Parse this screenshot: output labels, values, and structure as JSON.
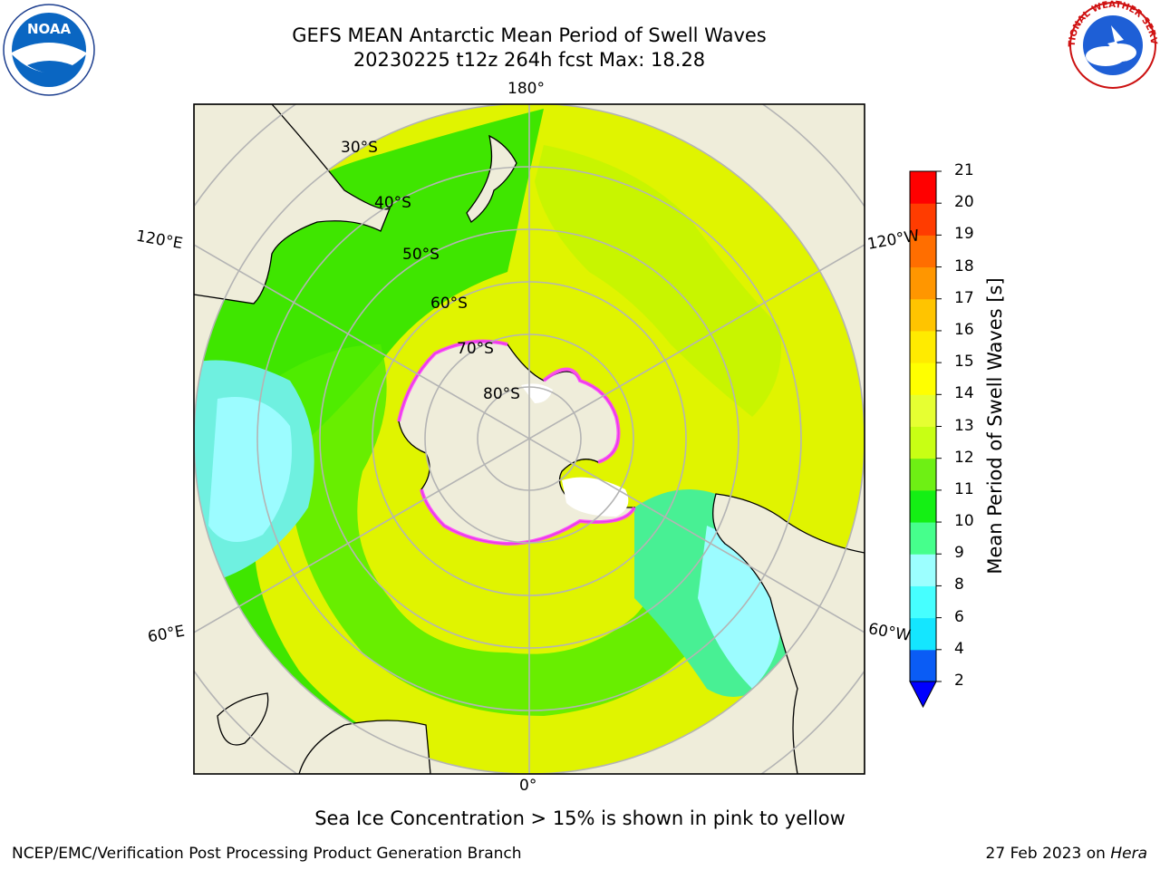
{
  "header": {
    "title_line1": "GEFS MEAN Antarctic Mean Period of Swell Waves",
    "title_line2": "20230225 t12z 264h fcst   Max: 18.28"
  },
  "logos": {
    "noaa_text": "NOAA",
    "nws_text": "NATIONAL WEATHER SERVICE"
  },
  "map": {
    "lon_labels": {
      "top": "180°",
      "bottom": "0°",
      "left_upper": "120°E",
      "right_upper": "120°W",
      "left_lower": "60°E",
      "right_lower": "60°W"
    },
    "lat_labels": [
      "30°S",
      "40°S",
      "50°S",
      "60°S",
      "70°S",
      "80°S"
    ],
    "colors": {
      "land": "#efedda",
      "ocean_yellow": "#e6f500",
      "ocean_green": "#3be600",
      "ocean_cyan": "#8efcff",
      "ice_edge": "#ff40ff",
      "grid": "#b4b4b4"
    }
  },
  "colorbar": {
    "label": "Mean Period of Swell Waves [s]",
    "ticks": [
      "2",
      "4",
      "6",
      "8",
      "9",
      "10",
      "11",
      "12",
      "13",
      "14",
      "15",
      "16",
      "17",
      "18",
      "19",
      "20",
      "21"
    ],
    "colors": [
      "#0a5cf5",
      "#14e6ff",
      "#46ffff",
      "#9cffff",
      "#46ff8c",
      "#14f014",
      "#6ef014",
      "#c8ff14",
      "#e6ff32",
      "#ffff00",
      "#ffeb00",
      "#ffc400",
      "#ff9600",
      "#ff6e00",
      "#ff3c00",
      "#ff0000"
    ],
    "under_color": "#0000ff"
  },
  "caption": "Sea Ice Concentration > 15% is shown in pink to yellow",
  "footer": {
    "left": "NCEP/EMC/Verification Post Processing Product Generation Branch",
    "right_prefix": "27 Feb 2023 on ",
    "right_system": "Hera"
  }
}
